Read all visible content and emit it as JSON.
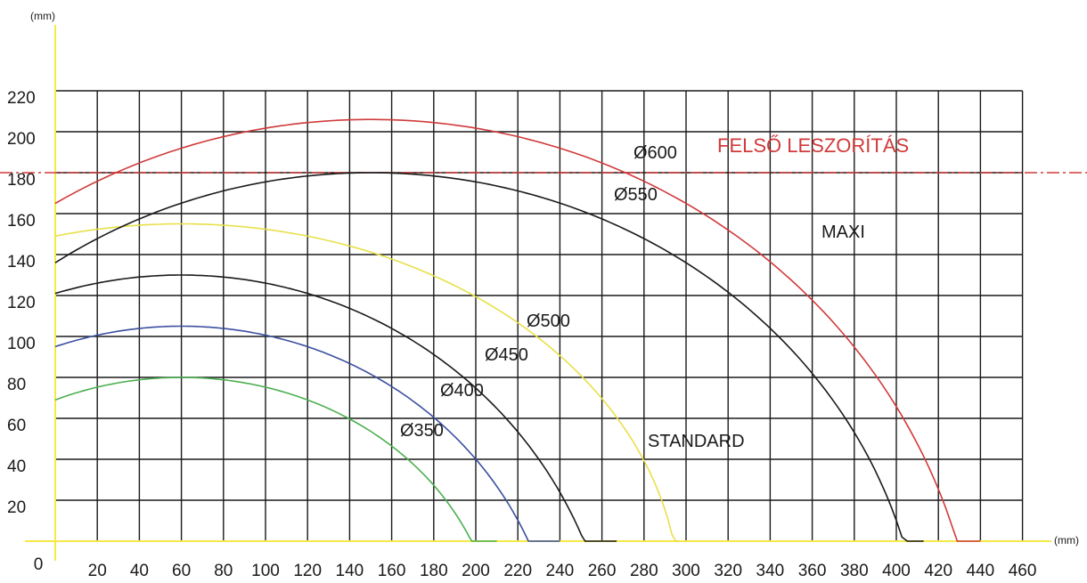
{
  "chart_data": {
    "type": "line",
    "x_unit": "(mm)",
    "y_unit": "(mm)",
    "x_ticks": [
      0,
      20,
      40,
      60,
      80,
      100,
      120,
      140,
      160,
      180,
      200,
      220,
      240,
      260,
      280,
      300,
      320,
      340,
      360,
      380,
      400,
      420,
      440,
      460
    ],
    "y_ticks": [
      0,
      20,
      40,
      60,
      80,
      100,
      120,
      140,
      160,
      180,
      200,
      220
    ],
    "xlim": [
      0,
      460
    ],
    "ylim": [
      0,
      220
    ],
    "grid": true,
    "series": [
      {
        "name": "Ø350",
        "color": "#4caf50",
        "center_x": 60,
        "peak_y": 80,
        "start_y": 69,
        "end_x": 210
      },
      {
        "name": "Ø400",
        "color": "#3b4fa0",
        "center_x": 60,
        "peak_y": 105,
        "start_y": 95,
        "end_x": 240
      },
      {
        "name": "Ø450",
        "color": "#1a1a1a",
        "center_x": 60,
        "peak_y": 130,
        "start_y": 121,
        "end_x": 267
      },
      {
        "name": "Ø500",
        "color": "#e8e04a",
        "center_x": 60,
        "peak_y": 155,
        "start_y": 149,
        "end_x": 297
      },
      {
        "name": "Ø550",
        "color": "#1a1a1a",
        "center_x": 150,
        "peak_y": 180,
        "start_y": 136,
        "end_x": 413
      },
      {
        "name": "Ø600",
        "color": "#d03a3a",
        "center_x": 150,
        "peak_y": 206,
        "start_y": 165,
        "end_x": 440
      }
    ],
    "reference_line": {
      "label": "FELSŐ LESZORÍTÁS",
      "y": 180,
      "color": "#d03a3a"
    },
    "annotations": [
      {
        "text": "MAXI",
        "x": 370,
        "y": 150
      },
      {
        "text": "STANDARD",
        "x": 290,
        "y": 48
      }
    ],
    "colors": {
      "axis": "#f5e94a",
      "grid": "#1a1a1a"
    }
  }
}
